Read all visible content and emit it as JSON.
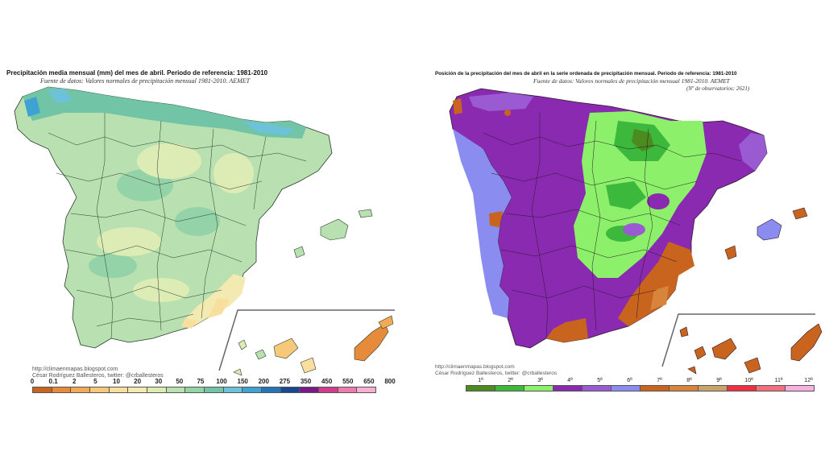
{
  "left": {
    "title": "Precipitación media mensual (mm) del mes de abril. Periodo de referencia: 1981-2010",
    "source": "Fuente de datos: Valores normales de precipitación mensual 1981-2010. AEMET",
    "credit_url": "http://climaenmapas.blogspot.com",
    "credit_author": "César Rodríguez Ballesteros, twitter: @crballesteros",
    "legend_ticks": [
      "0",
      "0.1",
      "2",
      "5",
      "10",
      "20",
      "30",
      "50",
      "75",
      "100",
      "150",
      "200",
      "275",
      "350",
      "450",
      "550",
      "650",
      "800"
    ],
    "legend_colors": [
      "#c8641e",
      "#e68a3c",
      "#f2aa55",
      "#f6c87a",
      "#f8df9e",
      "#f3eab2",
      "#dcecb4",
      "#b8e0b0",
      "#94d3a8",
      "#72c4a6",
      "#6cc2d8",
      "#3ea2d2",
      "#2474b8",
      "#154a92",
      "#7a1a8a",
      "#d0408a",
      "#ee7ab0",
      "#f8b0d0"
    ]
  },
  "right": {
    "title": "Posición de la precipitación del mes de abril en la serie ordenada de precipitación mensual. Periodo de referencia: 1981-2010",
    "source": "Fuente de datos: Valores normales de precipitación mensual 1981-2010. AEMET",
    "observatories": "(Nº de observatorios: 2621)",
    "credit_url": "http://climaenmapas.blogspot.com",
    "credit_author": "César Rodríguez Ballesteros, twitter: @crballesteros",
    "legend_ticks": [
      "1ª",
      "2ª",
      "3ª",
      "4ª",
      "5ª",
      "6ª",
      "7ª",
      "8ª",
      "9ª",
      "10ª",
      "11ª",
      "12ª"
    ],
    "legend_colors": [
      "#4a8c1e",
      "#3cb83c",
      "#8cf06a",
      "#8a2ab0",
      "#9a5ad2",
      "#8a8cf0",
      "#c8641e",
      "#d8843c",
      "#c8a46a",
      "#f03040",
      "#f07080",
      "#f8b0e0"
    ]
  }
}
